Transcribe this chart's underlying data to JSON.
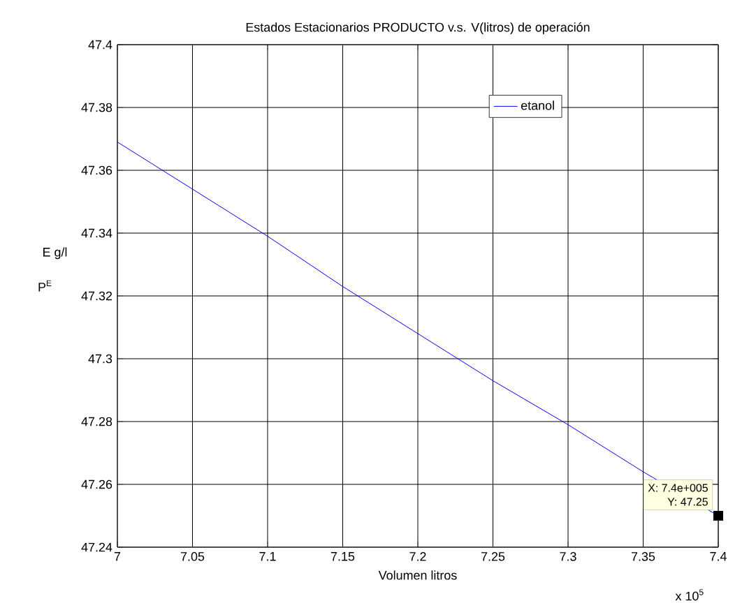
{
  "chart_data": {
    "type": "line",
    "title": "Estados Estacionarios PRODUCTO v.s. V(litros) de operación",
    "xlabel": "Volumen litros",
    "ylabel": "E g/l",
    "x": [
      7,
      7.05,
      7.1,
      7.15,
      7.2,
      7.25,
      7.3,
      7.35,
      7.4
    ],
    "series": [
      {
        "name": "etanol",
        "color": "#0000ff",
        "values": [
          47.369,
          47.354,
          47.339,
          47.323,
          47.308,
          47.293,
          47.279,
          47.264,
          47.25
        ]
      }
    ],
    "xlim": [
      7,
      7.4
    ],
    "xticks": [
      7,
      7.05,
      7.1,
      7.15,
      7.2,
      7.25,
      7.3,
      7.35,
      7.4
    ],
    "ylim": [
      47.24,
      47.4
    ],
    "yticks": [
      47.24,
      47.26,
      47.28,
      47.3,
      47.32,
      47.34,
      47.36,
      47.38,
      47.4
    ],
    "annotations": [
      "P$^{E}$",
      "x 10$^{5}$",
      {
        "text": "X: 7.4e+005",
        "x": 7.4,
        "y": 47.25
      },
      {
        "text": "Y: 47.25",
        "x": 7.4,
        "y": 47.25
      }
    ],
    "grid": true,
    "legend": "top right",
    "marker": "none",
    "line_style": "solid"
  }
}
